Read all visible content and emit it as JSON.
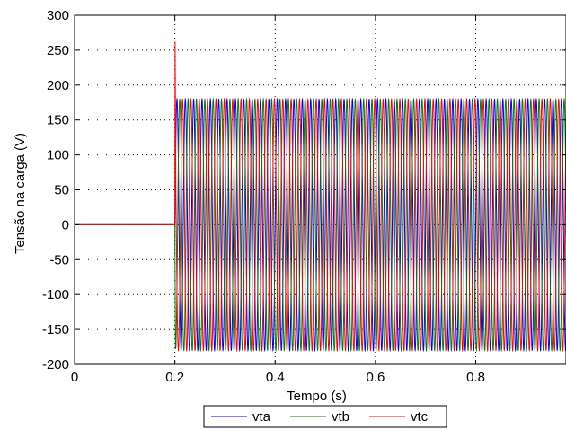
{
  "chart_data": {
    "type": "line",
    "title": "",
    "xlabel": "Tempo (s)",
    "ylabel": "Tensão na carga (V)",
    "xlim": [
      0,
      0.98
    ],
    "ylim": [
      -200,
      300
    ],
    "xticks": [
      0,
      0.2,
      0.4,
      0.6,
      0.8
    ],
    "xtick_labels": [
      "0",
      "0.2",
      "0.4",
      "0.6",
      "0.8"
    ],
    "yticks": [
      -200,
      -150,
      -100,
      -50,
      0,
      50,
      100,
      150,
      200,
      250,
      300
    ],
    "ytick_labels": [
      "-200",
      "-150",
      "-100",
      "-50",
      "0",
      "50",
      "100",
      "150",
      "200",
      "250",
      "300"
    ],
    "grid": true,
    "legend_position": "bottom-outside",
    "waveform": {
      "switch_on_time": 0.2,
      "amplitude": 180,
      "frequency_hz": 60,
      "value_before_switch": 0,
      "transient_peak_vtc": 262,
      "transient_min_vtb": -178
    },
    "series": [
      {
        "name": "vta",
        "color": "#0000ff",
        "phase_deg": 0
      },
      {
        "name": "vtb",
        "color": "#008000",
        "phase_deg": -120
      },
      {
        "name": "vtc",
        "color": "#ff0000",
        "phase_deg": 120
      }
    ]
  }
}
